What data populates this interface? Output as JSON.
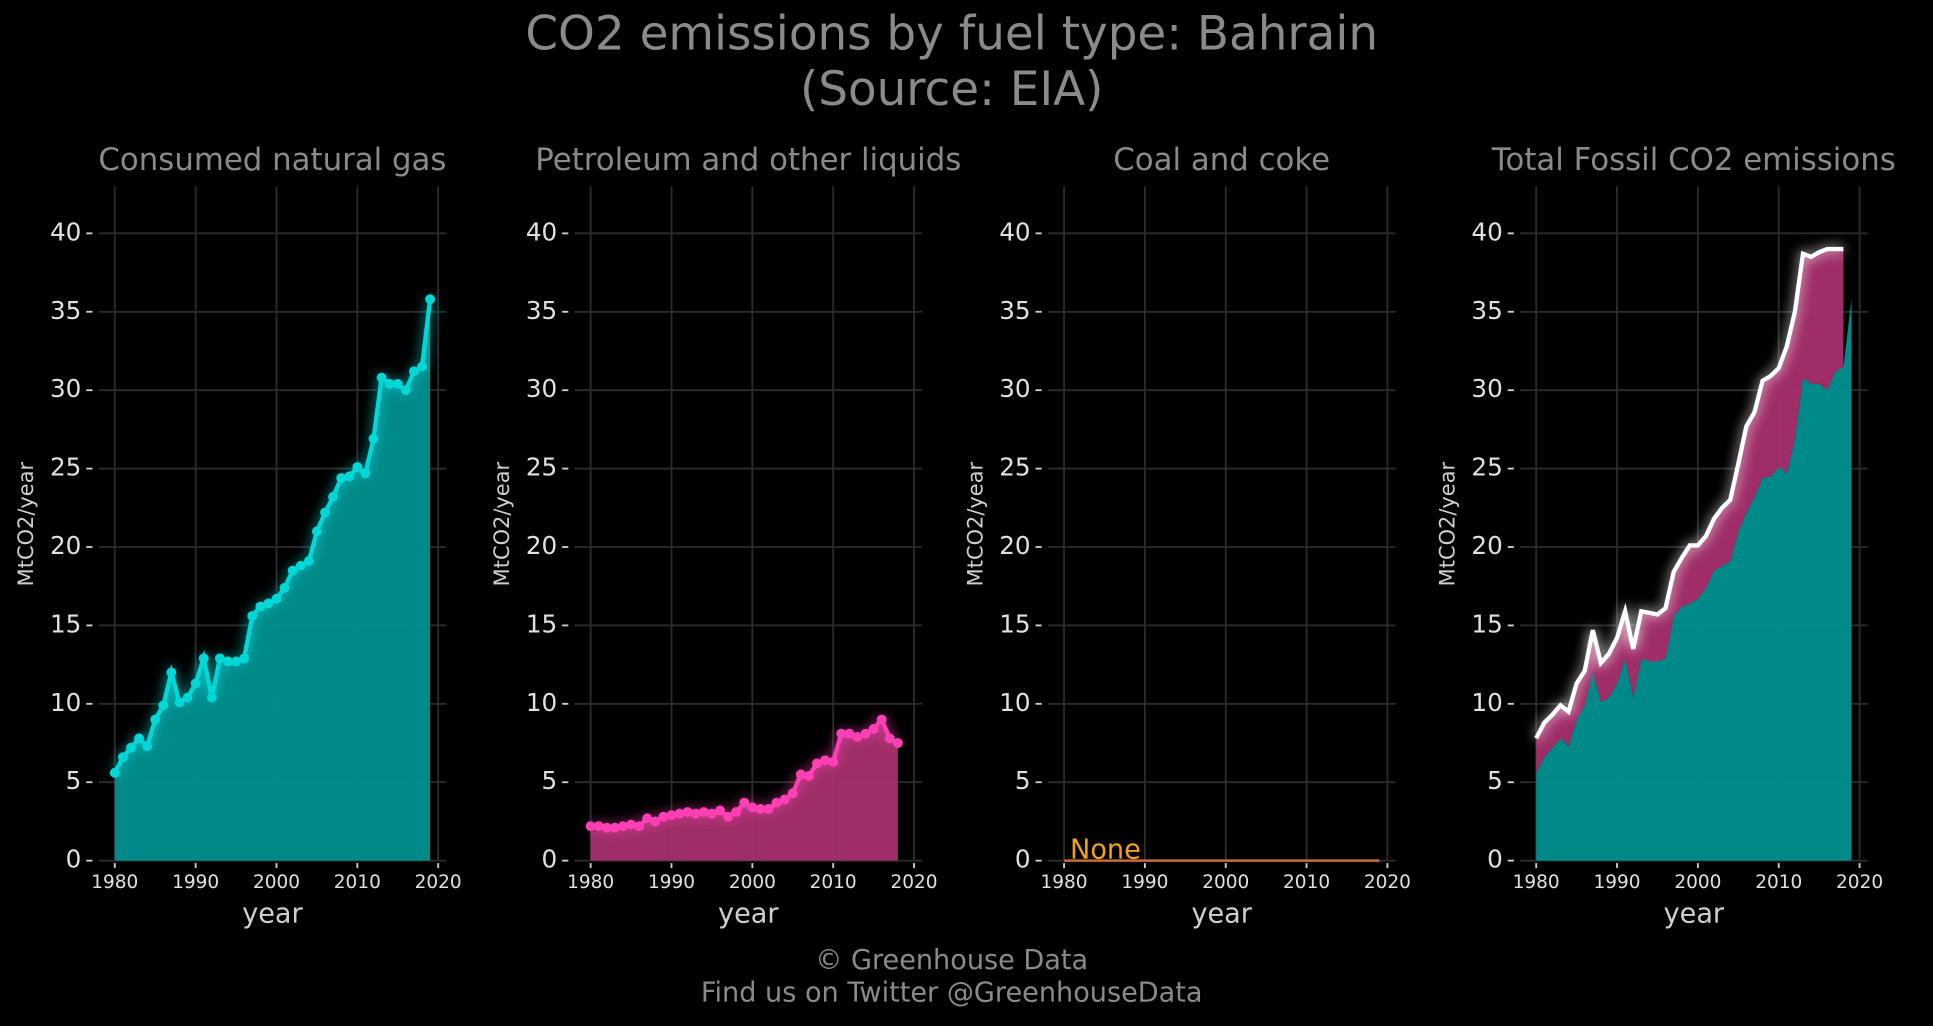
{
  "title": "CO2 emissions by fuel type: Bahrain",
  "subtitle": "(Source: EIA)",
  "footer": [
    "© Greenhouse Data",
    "Find us on Twitter @GreenhouseData"
  ],
  "chart_data": [
    {
      "type": "area",
      "title": "Consumed natural gas",
      "x_label": "year",
      "y_label": "MtCO2/year",
      "x": [
        1980,
        1981,
        1982,
        1983,
        1984,
        1985,
        1986,
        1987,
        1988,
        1989,
        1990,
        1991,
        1992,
        1993,
        1994,
        1995,
        1996,
        1997,
        1998,
        1999,
        2000,
        2001,
        2002,
        2003,
        2004,
        2005,
        2006,
        2007,
        2008,
        2009,
        2010,
        2011,
        2012,
        2013,
        2014,
        2015,
        2016,
        2017,
        2018,
        2019
      ],
      "series": [
        {
          "color": "#00d8d8",
          "fill": "#009090",
          "values": [
            5.6,
            6.6,
            7.2,
            7.8,
            7.3,
            9.0,
            9.9,
            12.0,
            10.1,
            10.4,
            11.3,
            12.9,
            10.4,
            12.9,
            12.7,
            12.7,
            12.9,
            15.6,
            16.2,
            16.4,
            16.7,
            17.4,
            18.5,
            18.8,
            19.1,
            21.0,
            22.2,
            23.2,
            24.4,
            24.5,
            25.1,
            24.7,
            26.9,
            30.8,
            30.4,
            30.4,
            30.0,
            31.2,
            31.5,
            35.8
          ]
        }
      ],
      "xlim": [
        1978,
        2021
      ],
      "ylim": [
        0,
        43
      ],
      "xticks": [
        1980,
        1990,
        2000,
        2010,
        2020
      ],
      "yticks": [
        0,
        5,
        10,
        15,
        20,
        25,
        30,
        35,
        40
      ],
      "grid": true
    },
    {
      "type": "area",
      "title": "Petroleum and other liquids",
      "x_label": "year",
      "y_label": "MtCO2/year",
      "x": [
        1980,
        1981,
        1982,
        1983,
        1984,
        1985,
        1986,
        1987,
        1988,
        1989,
        1990,
        1991,
        1992,
        1993,
        1994,
        1995,
        1996,
        1997,
        1998,
        1999,
        2000,
        2001,
        2002,
        2003,
        2004,
        2005,
        2006,
        2007,
        2008,
        2009,
        2010,
        2011,
        2012,
        2013,
        2014,
        2015,
        2016,
        2017,
        2018
      ],
      "series": [
        {
          "color": "#ff40b4",
          "fill": "#a8306e",
          "values": [
            2.2,
            2.2,
            2.1,
            2.1,
            2.2,
            2.3,
            2.2,
            2.7,
            2.5,
            2.8,
            2.9,
            3.0,
            3.1,
            3.0,
            3.1,
            3.0,
            3.2,
            2.8,
            3.1,
            3.7,
            3.4,
            3.3,
            3.3,
            3.7,
            3.9,
            4.3,
            5.5,
            5.4,
            6.2,
            6.4,
            6.3,
            8.1,
            8.1,
            7.9,
            8.1,
            8.4,
            9.0,
            7.8,
            7.5
          ]
        }
      ],
      "xlim": [
        1978,
        2021
      ],
      "ylim": [
        0,
        43
      ],
      "xticks": [
        1980,
        1990,
        2000,
        2010,
        2020
      ],
      "yticks": [
        0,
        5,
        10,
        15,
        20,
        25,
        30,
        35,
        40
      ],
      "grid": true
    },
    {
      "type": "line",
      "title": "Coal and coke",
      "x_label": "year",
      "y_label": "MtCO2/year",
      "x": [
        1980,
        2019
      ],
      "series": [
        {
          "color": "#c86a3a",
          "values": [
            0,
            0
          ]
        }
      ],
      "annotation": {
        "text": "None",
        "color": "#f0a020"
      },
      "xlim": [
        1978,
        2021
      ],
      "ylim": [
        0,
        43
      ],
      "xticks": [
        1980,
        1990,
        2000,
        2010,
        2020
      ],
      "yticks": [
        0,
        5,
        10,
        15,
        20,
        25,
        30,
        35,
        40
      ],
      "grid": true
    },
    {
      "type": "stacked_area",
      "title": "Total Fossil CO2 emissions",
      "x_label": "year",
      "y_label": "MtCO2/year",
      "x": [
        1980,
        1981,
        1982,
        1983,
        1984,
        1985,
        1986,
        1987,
        1988,
        1989,
        1990,
        1991,
        1992,
        1993,
        1994,
        1995,
        1996,
        1997,
        1998,
        1999,
        2000,
        2001,
        2002,
        2003,
        2004,
        2005,
        2006,
        2007,
        2008,
        2009,
        2010,
        2011,
        2012,
        2013,
        2014,
        2015,
        2016,
        2017,
        2018,
        2019
      ],
      "series": [
        {
          "fill": "#009090",
          "values": [
            5.6,
            6.6,
            7.2,
            7.8,
            7.3,
            9.0,
            9.9,
            12.0,
            10.1,
            10.4,
            11.3,
            12.9,
            10.4,
            12.9,
            12.7,
            12.7,
            12.9,
            15.6,
            16.2,
            16.4,
            16.7,
            17.4,
            18.5,
            18.8,
            19.1,
            21.0,
            22.2,
            23.2,
            24.4,
            24.5,
            25.1,
            24.7,
            26.9,
            30.8,
            30.4,
            30.4,
            30.0,
            31.2,
            31.5,
            35.8
          ]
        },
        {
          "fill": "#a8306e",
          "values": [
            2.2,
            2.2,
            2.1,
            2.1,
            2.2,
            2.3,
            2.2,
            2.7,
            2.5,
            2.8,
            2.9,
            3.0,
            3.1,
            3.0,
            3.1,
            3.0,
            3.2,
            2.8,
            3.1,
            3.7,
            3.4,
            3.3,
            3.3,
            3.7,
            3.9,
            4.3,
            5.5,
            5.4,
            6.2,
            6.4,
            6.3,
            8.1,
            8.1,
            7.9,
            8.1,
            8.4,
            9.0,
            7.8,
            7.5,
            null
          ]
        }
      ],
      "line_color": "#ffffff",
      "xlim": [
        1978,
        2021
      ],
      "ylim": [
        0,
        43
      ],
      "xticks": [
        1980,
        1990,
        2000,
        2010,
        2020
      ],
      "yticks": [
        0,
        5,
        10,
        15,
        20,
        25,
        30,
        35,
        40
      ],
      "grid": true
    }
  ]
}
